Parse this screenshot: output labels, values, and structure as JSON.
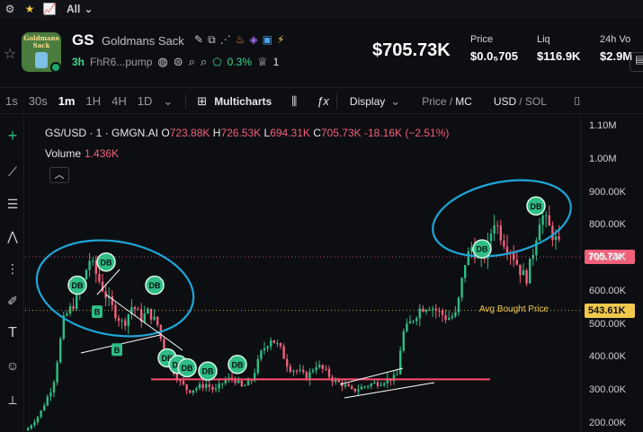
{
  "topbar": {
    "filter_label": "All"
  },
  "token": {
    "symbol": "GS",
    "name": "Goldmans Sack",
    "logo_text": "Goldmans Sack",
    "age": "3h",
    "address": "FhR6...pump",
    "change": "0.3%",
    "holders_count": "1"
  },
  "header": {
    "price": "$705.73K",
    "stats": [
      {
        "label": "Price",
        "value": "$0.0₅705"
      },
      {
        "label": "Liq",
        "value": "$116.9K"
      },
      {
        "label": "24h Vo",
        "value": "$2.9M"
      }
    ]
  },
  "toolbar": {
    "timeframes": [
      "1s",
      "30s",
      "1m",
      "1H",
      "4H",
      "1D"
    ],
    "active_timeframe": "1m",
    "multicharts": "Multicharts",
    "fx": "ƒx",
    "display": "Display",
    "price_mc_a": "Price /",
    "price_mc_b": "MC",
    "currency_a": "USD",
    "currency_b": "/ SOL"
  },
  "legend": {
    "pair": "GS/USD · 1 · GMGN.AI",
    "o_label": "O",
    "o": "723.88K",
    "h_label": "H",
    "h": "726.53K",
    "l_label": "L",
    "l": "694.31K",
    "c_label": "C",
    "c": "705.73K",
    "change": "-18.16K (−2.51%)",
    "volume_label": "Volume",
    "volume": "1.436K"
  },
  "axis": {
    "ticks": [
      "1.10M",
      "1.00M",
      "900.00K",
      "800.00K",
      "700.00K",
      "600.00K",
      "500.00K",
      "400.00K",
      "300.00K",
      "200.00K"
    ],
    "current_tag": "705.73K",
    "avg_tag": "543.61K",
    "avg_label": "Avg Bought Price"
  },
  "chart_data": {
    "type": "candlestick",
    "ylim": [
      170000,
      1130000
    ],
    "current_price": 705730,
    "avg_bought_price": 543610,
    "support_level": 335000,
    "colors": {
      "up": "#2ebd85",
      "down": "#f0607a",
      "annotation": "#1ea7d8",
      "avg": "#f2c94c",
      "current": "#f0607a"
    },
    "markers": [
      {
        "label": "DB",
        "price": 620000
      },
      {
        "label": "DB",
        "price": 690000
      },
      {
        "label": "DB",
        "price": 620000
      },
      {
        "label": "B",
        "price": 540000
      },
      {
        "label": "B",
        "price": 425000
      },
      {
        "label": "DB",
        "price": 400000
      },
      {
        "label": "DB",
        "price": 380000
      },
      {
        "label": "DB",
        "price": 370000
      },
      {
        "label": "DB",
        "price": 360000
      },
      {
        "label": "DB",
        "price": 380000
      },
      {
        "label": "DB",
        "price": 730000
      },
      {
        "label": "DB",
        "price": 860000
      }
    ]
  }
}
